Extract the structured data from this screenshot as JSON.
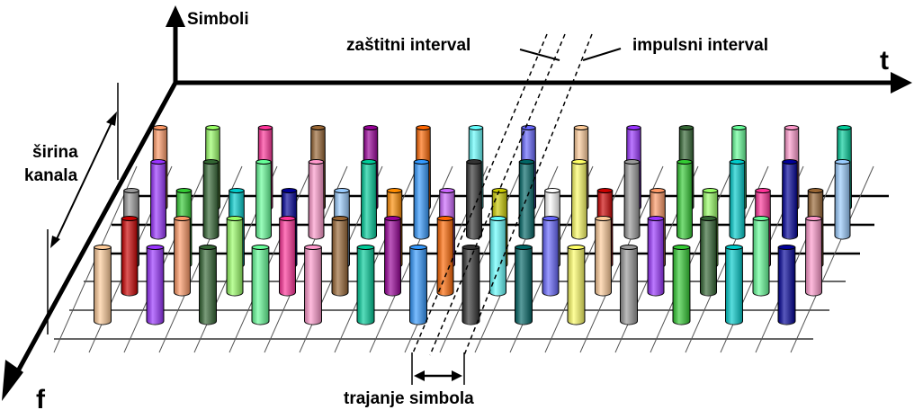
{
  "labels": {
    "symbols_axis": "Simboli",
    "time_axis": "t",
    "freq_axis": "f",
    "channel_width_line1": "širina",
    "channel_width_line2": "kanala",
    "guard_interval": "zaštitni interval",
    "pulse_interval": "impulsni interval",
    "symbol_duration": "trajanje simbola"
  },
  "pillar_colors": [
    "#ff9966",
    "#ffff66",
    "#66ffff",
    "#ff8c00",
    "#ff99cc",
    "#99ff66",
    "#999999",
    "#6666ff",
    "#cc66ff",
    "#00cc99",
    "#ff3399",
    "#33cc33",
    "#ffcc99",
    "#cccc00",
    "#3399ff",
    "#996633",
    "#00cccc",
    "#9933ff",
    "#ffffff",
    "#333333",
    "#990099",
    "#000099",
    "#336633",
    "#cc0000",
    "#006666",
    "#ff6600",
    "#99ccff",
    "#66ff99"
  ]
}
